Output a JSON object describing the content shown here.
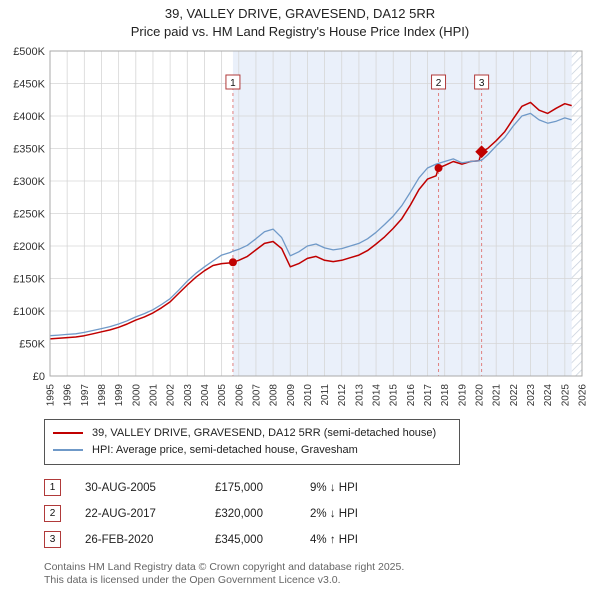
{
  "title": "39, VALLEY DRIVE, GRAVESEND, DA12 5RR",
  "subtitle": "Price paid vs. HM Land Registry's House Price Index (HPI)",
  "chart_data": {
    "type": "line",
    "title": "39, VALLEY DRIVE, GRAVESEND, DA12 5RR — Price paid vs. HPI",
    "grid": true,
    "legend_position": "bottom",
    "x_range": [
      1995,
      2026
    ],
    "ylim": [
      0,
      500000
    ],
    "values_unit": "GBP_thousands",
    "y_tick_labels": [
      "£0",
      "£50K",
      "£100K",
      "£150K",
      "£200K",
      "£250K",
      "£300K",
      "£350K",
      "£400K",
      "£450K",
      "£500K"
    ],
    "x_tick_labels": [
      "1995",
      "1996",
      "1997",
      "1998",
      "1999",
      "2000",
      "2001",
      "2002",
      "2003",
      "2004",
      "2005",
      "2006",
      "2007",
      "2008",
      "2009",
      "2010",
      "2011",
      "2012",
      "2013",
      "2014",
      "2015",
      "2016",
      "2017",
      "2018",
      "2019",
      "2020",
      "2021",
      "2022",
      "2023",
      "2024",
      "2025",
      "2026"
    ],
    "x": [
      1995,
      1995.5,
      1996,
      1996.5,
      1997,
      1997.5,
      1998,
      1998.5,
      1999,
      1999.5,
      2000,
      2000.5,
      2001,
      2001.5,
      2002,
      2002.5,
      2003,
      2003.5,
      2004,
      2004.5,
      2005,
      2005.5,
      2005.66,
      2006,
      2006.5,
      2007,
      2007.5,
      2008,
      2008.5,
      2009,
      2009.5,
      2010,
      2010.5,
      2011,
      2011.5,
      2012,
      2012.5,
      2013,
      2013.5,
      2014,
      2014.5,
      2015,
      2015.5,
      2016,
      2016.5,
      2017,
      2017.5,
      2017.64,
      2018,
      2018.5,
      2019,
      2019.5,
      2020,
      2020.15,
      2020.5,
      2021,
      2021.5,
      2022,
      2022.5,
      2023,
      2023.5,
      2024,
      2024.5,
      2025,
      2025.4
    ],
    "series": [
      {
        "name": "39, VALLEY DRIVE, GRAVESEND, DA12 5RR (semi-detached house)",
        "color": "#c00000",
        "values": [
          57,
          58,
          59,
          60,
          62,
          65,
          68,
          71,
          75,
          80,
          86,
          91,
          97,
          105,
          114,
          127,
          140,
          152,
          162,
          170,
          173,
          174,
          175,
          178,
          184,
          194,
          204,
          207,
          196,
          168,
          173,
          181,
          184,
          178,
          176,
          178,
          182,
          186,
          193,
          203,
          214,
          227,
          242,
          263,
          287,
          303,
          308,
          320,
          324,
          330,
          326,
          330,
          331,
          345,
          350,
          362,
          376,
          396,
          415,
          421,
          409,
          404,
          412,
          419,
          416
        ]
      },
      {
        "name": "HPI: Average price, semi-detached house, Gravesham",
        "color": "#6f99c8",
        "values": [
          62,
          63,
          64,
          65,
          67,
          70,
          73,
          76,
          80,
          85,
          91,
          96,
          102,
          110,
          119,
          132,
          146,
          158,
          168,
          177,
          186,
          190,
          192,
          195,
          201,
          211,
          222,
          226,
          213,
          185,
          191,
          200,
          203,
          197,
          194,
          196,
          200,
          204,
          211,
          221,
          233,
          246,
          262,
          283,
          305,
          320,
          326,
          327,
          330,
          334,
          328,
          330,
          331,
          332,
          340,
          354,
          367,
          385,
          400,
          404,
          394,
          389,
          392,
          397,
          394
        ]
      }
    ],
    "sales": [
      {
        "n": "1",
        "x": 2005.66,
        "value_k": 175,
        "marker": "circle"
      },
      {
        "n": "2",
        "x": 2017.64,
        "value_k": 320,
        "marker": "circle"
      },
      {
        "n": "3",
        "x": 2020.15,
        "value_k": 345,
        "marker": "diamond"
      }
    ],
    "shade_from_x": 2005.66,
    "hatch_from_x": 2025.4,
    "colors": {
      "shade": "#eaf0fa",
      "dashed_line": "#e08080",
      "grid": "#d6d6d6",
      "axis": "#aaaaaa",
      "marker_box_border": "#b03a3a",
      "hatch_line": "#c3cdda"
    }
  },
  "legend": [
    {
      "label": "39, VALLEY DRIVE, GRAVESEND, DA12 5RR (semi-detached house)",
      "color": "#c00000"
    },
    {
      "label": "HPI: Average price, semi-detached house, Gravesham",
      "color": "#6f99c8"
    }
  ],
  "transactions": [
    {
      "n": "1",
      "date": "30-AUG-2005",
      "price": "£175,000",
      "hpi": "9% ↓ HPI"
    },
    {
      "n": "2",
      "date": "22-AUG-2017",
      "price": "£320,000",
      "hpi": "2% ↓ HPI"
    },
    {
      "n": "3",
      "date": "26-FEB-2020",
      "price": "£345,000",
      "hpi": "4% ↑ HPI"
    }
  ],
  "footer": {
    "line1": "Contains HM Land Registry data © Crown copyright and database right 2025.",
    "line2": "This data is licensed under the Open Government Licence v3.0."
  }
}
